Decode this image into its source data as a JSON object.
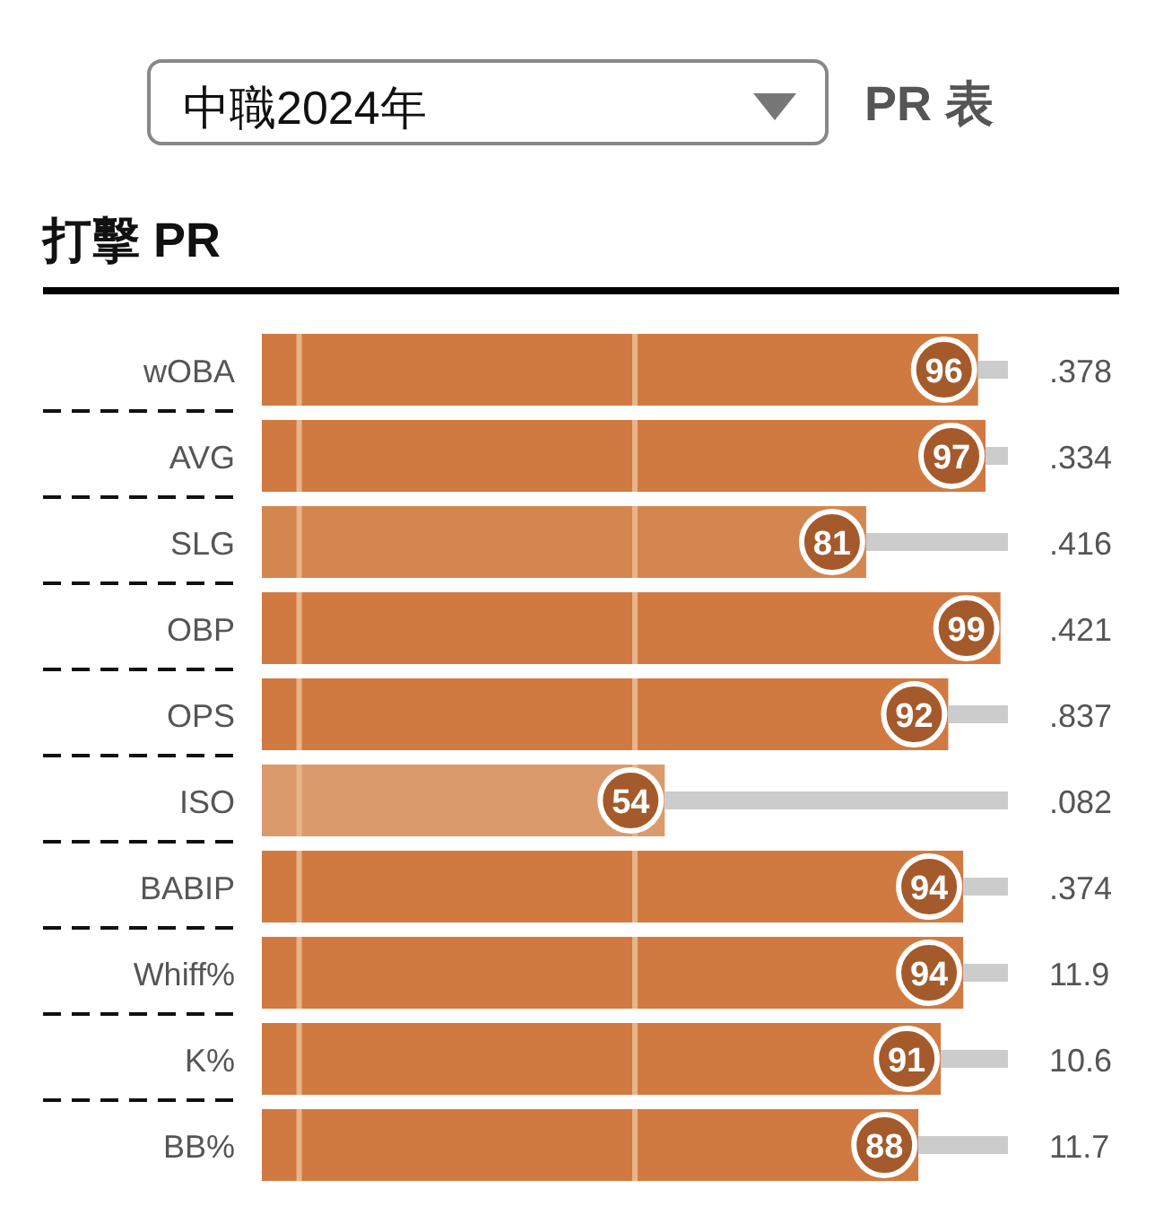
{
  "chart_data": {
    "type": "bar",
    "orientation": "horizontal",
    "stacked": true,
    "title": "打擊 PR",
    "categories": [
      "wOBA",
      "AVG",
      "SLG",
      "OBP",
      "OPS",
      "ISO",
      "BABIP",
      "Whiff%",
      "K%",
      "BB%"
    ],
    "series": [
      {
        "values": [
          96,
          97,
          81,
          99,
          92,
          54,
          94,
          94,
          91,
          88
        ],
        "colors": [
          "#d07a41",
          "#d07a41",
          "#d4864f",
          "#d07a41",
          "#d07a41",
          "#da9a6b",
          "#d07a41",
          "#d07a41",
          "#d07a41",
          "#d07a41"
        ],
        "value_labels": [
          "96",
          "97",
          "81",
          "99",
          "92",
          "54",
          "94",
          "94",
          "91",
          "88"
        ]
      },
      {
        "values": [
          4,
          3,
          19,
          null,
          8,
          46,
          6,
          6,
          9,
          12
        ],
        "color": "#cccccc"
      }
    ],
    "ref_lines": [
      {
        "axis": "x",
        "value": 5,
        "color": "#e8b48c"
      },
      {
        "axis": "x",
        "value": 50,
        "color": "#e8b48c"
      }
    ],
    "annotations": [
      "中職2024年",
      "PR 表",
      ".378",
      ".334",
      ".416",
      ".421",
      ".837",
      ".082",
      ".374",
      "11.9",
      "10.6",
      "11.7"
    ]
  }
}
